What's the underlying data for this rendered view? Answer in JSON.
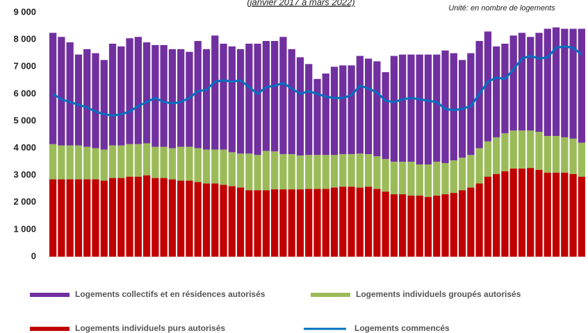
{
  "chart_data": {
    "type": "bar",
    "stacked": true,
    "title": "(janvier 2017 à mars 2022)",
    "subtitle": "Unité: en nombre de logements",
    "categories": [
      null,
      null,
      null,
      null,
      null,
      null,
      null,
      null,
      null,
      null,
      null,
      null,
      null,
      null,
      null,
      null,
      null,
      null,
      null,
      null,
      null,
      null,
      null,
      null,
      null,
      null,
      null,
      null,
      null,
      null,
      null,
      null,
      null,
      null,
      null,
      null,
      null,
      null,
      null,
      null,
      null,
      null,
      null,
      null,
      null,
      null,
      null,
      null,
      null,
      null,
      null,
      null,
      null,
      null,
      null,
      null,
      null,
      null,
      null,
      null,
      null,
      null,
      null
    ],
    "ylim": [
      0,
      9000
    ],
    "yticks": [
      0,
      {
        "value": 1000,
        "label": "1 000"
      },
      {
        "value": 2000,
        "label": "2 000"
      },
      {
        "value": 3000,
        "label": "3 000"
      },
      {
        "value": 4000,
        "label": "4 000"
      },
      {
        "value": 5000,
        "label": "5 000"
      },
      {
        "value": 6000,
        "label": "6 000"
      },
      {
        "value": 7000,
        "label": "7 000"
      },
      {
        "value": 8000,
        "label": "8 000"
      },
      {
        "value": 9000,
        "label": "9 000"
      }
    ],
    "series": [
      {
        "name": "Logements individuels purs autorisés",
        "type": "bar",
        "color": "#c00000",
        "values": [
          2850,
          2850,
          2850,
          2850,
          2850,
          2850,
          2800,
          2900,
          2900,
          2950,
          2950,
          3000,
          2900,
          2900,
          2850,
          2800,
          2800,
          2750,
          2700,
          2700,
          2650,
          2600,
          2550,
          2450,
          2450,
          2450,
          2480,
          2480,
          2480,
          2480,
          2500,
          2500,
          2500,
          2550,
          2580,
          2580,
          2550,
          2580,
          2500,
          2400,
          2300,
          2300,
          2250,
          2250,
          2200,
          2250,
          2300,
          2350,
          2450,
          2550,
          2700,
          2950,
          3050,
          3150,
          3250,
          3250,
          3270,
          3200,
          3100,
          3100,
          3100,
          3050,
          2950
        ]
      },
      {
        "name": "Logements individuels groupés autorisés",
        "type": "bar",
        "color": "#9bbb59",
        "values": [
          1300,
          1250,
          1250,
          1250,
          1200,
          1150,
          1150,
          1200,
          1200,
          1200,
          1200,
          1180,
          1150,
          1150,
          1150,
          1250,
          1250,
          1250,
          1250,
          1250,
          1300,
          1250,
          1250,
          1350,
          1300,
          1450,
          1400,
          1300,
          1300,
          1250,
          1250,
          1250,
          1250,
          1200,
          1200,
          1200,
          1250,
          1200,
          1200,
          1200,
          1200,
          1200,
          1250,
          1150,
          1200,
          1250,
          1150,
          1200,
          1200,
          1200,
          1300,
          1300,
          1350,
          1400,
          1400,
          1400,
          1380,
          1400,
          1350,
          1350,
          1300,
          1300,
          1250
        ]
      },
      {
        "name": "Logements  collectifs et en résidences autorisés",
        "type": "bar",
        "color": "#7030a0",
        "values": [
          4100,
          4000,
          3800,
          3350,
          3600,
          3500,
          3300,
          3750,
          3650,
          3900,
          3950,
          3720,
          3750,
          3750,
          3650,
          3600,
          3500,
          3950,
          3700,
          4200,
          3900,
          3900,
          3850,
          4050,
          4100,
          4050,
          4070,
          4320,
          3870,
          3620,
          3350,
          2800,
          3000,
          3250,
          3270,
          3270,
          3600,
          3520,
          3500,
          3200,
          3900,
          3950,
          3950,
          4050,
          4050,
          3950,
          4150,
          3950,
          3600,
          3750,
          3950,
          4050,
          3350,
          3300,
          3500,
          3600,
          3450,
          3650,
          3950,
          4000,
          4000,
          4050,
          4200
        ]
      },
      {
        "name": "Logements commencés",
        "type": "line",
        "color": "#0070c0",
        "values": [
          6000,
          5800,
          5700,
          5600,
          5500,
          5350,
          5250,
          5200,
          5250,
          5350,
          5550,
          5700,
          5850,
          5700,
          5650,
          5700,
          5850,
          6100,
          6150,
          6450,
          6500,
          6450,
          6500,
          6250,
          6000,
          6250,
          6300,
          6400,
          6200,
          6000,
          6100,
          6000,
          5900,
          5850,
          5850,
          5950,
          6300,
          6200,
          6050,
          5750,
          5700,
          5800,
          5850,
          5800,
          5750,
          5700,
          5450,
          5400,
          5450,
          5550,
          6000,
          6450,
          6600,
          6550,
          6900,
          7300,
          7400,
          7300,
          7350,
          7700,
          7750,
          7700,
          7450
        ]
      }
    ]
  }
}
